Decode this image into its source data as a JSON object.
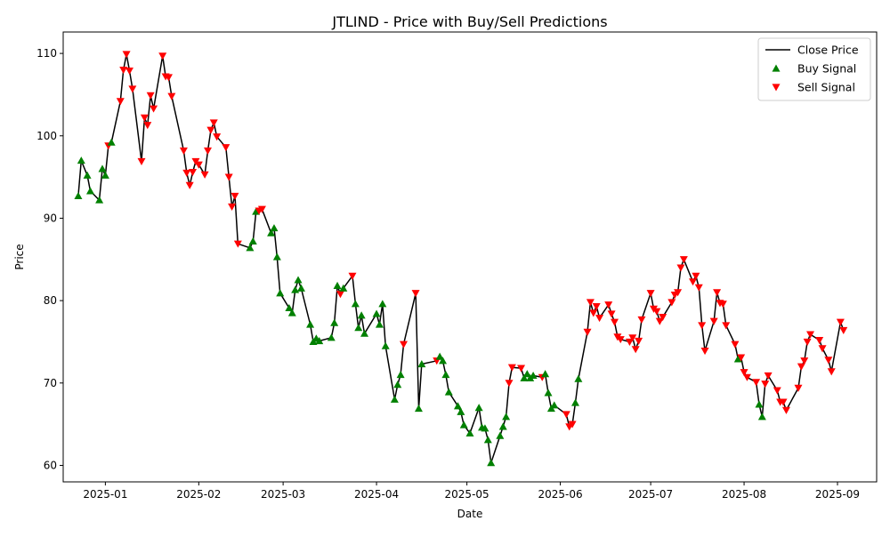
{
  "chart_data": {
    "type": "line",
    "title": "JTLIND - Price with Buy/Sell Predictions",
    "xlabel": "Date",
    "ylabel": "Price",
    "x_ticks": [
      "2025-01",
      "2025-02",
      "2025-03",
      "2025-04",
      "2025-05",
      "2025-06",
      "2025-07",
      "2025-08",
      "2025-09"
    ],
    "y_ticks": [
      60,
      70,
      80,
      90,
      100,
      110
    ],
    "xlim": [
      "2024-12-18",
      "2025-09-14"
    ],
    "ylim": [
      58.0,
      112.6
    ],
    "grid": false,
    "legend_position": "top-right",
    "legend": [
      {
        "label": "Close Price",
        "color": "#000000",
        "marker": "line"
      },
      {
        "label": "Buy Signal",
        "color": "#008000",
        "marker": "triangle-up"
      },
      {
        "label": "Sell Signal",
        "color": "#ff0000",
        "marker": "triangle-down"
      }
    ],
    "points": [
      [
        "2024-12-23",
        92.7,
        "buy"
      ],
      [
        "2024-12-24",
        97.0,
        "buy"
      ],
      [
        "2024-12-26",
        95.2,
        "buy"
      ],
      [
        "2024-12-27",
        93.3,
        "buy"
      ],
      [
        "2024-12-30",
        92.2,
        "buy"
      ],
      [
        "2024-12-31",
        96.0,
        "buy"
      ],
      [
        "2025-01-01",
        95.2,
        "buy"
      ],
      [
        "2025-01-02",
        98.8,
        "sell"
      ],
      [
        "2025-01-03",
        99.2,
        "buy"
      ],
      [
        "2025-01-06",
        104.2,
        "sell"
      ],
      [
        "2025-01-07",
        108.0,
        "sell"
      ],
      [
        "2025-01-08",
        109.9,
        "sell"
      ],
      [
        "2025-01-09",
        107.9,
        "sell"
      ],
      [
        "2025-01-10",
        105.7,
        "sell"
      ],
      [
        "2025-01-13",
        96.9,
        "sell"
      ],
      [
        "2025-01-14",
        102.2,
        "sell"
      ],
      [
        "2025-01-15",
        101.3,
        "sell"
      ],
      [
        "2025-01-16",
        104.9,
        "sell"
      ],
      [
        "2025-01-17",
        103.3,
        "sell"
      ],
      [
        "2025-01-20",
        109.7,
        "sell"
      ],
      [
        "2025-01-21",
        107.2,
        "sell"
      ],
      [
        "2025-01-22",
        107.1,
        "sell"
      ],
      [
        "2025-01-23",
        104.8,
        "sell"
      ],
      [
        "2025-01-27",
        98.2,
        "sell"
      ],
      [
        "2025-01-28",
        95.5,
        "sell"
      ],
      [
        "2025-01-29",
        94.0,
        "sell"
      ],
      [
        "2025-01-30",
        95.6,
        "sell"
      ],
      [
        "2025-01-31",
        96.9,
        "sell"
      ],
      [
        "2025-02-01",
        96.5,
        "sell"
      ],
      [
        "2025-02-03",
        95.3,
        "sell"
      ],
      [
        "2025-02-04",
        98.2,
        "sell"
      ],
      [
        "2025-02-05",
        100.7,
        "sell"
      ],
      [
        "2025-02-06",
        101.6,
        "sell"
      ],
      [
        "2025-02-07",
        99.9,
        "sell"
      ],
      [
        "2025-02-10",
        98.6,
        "sell"
      ],
      [
        "2025-02-11",
        95.0,
        "sell"
      ],
      [
        "2025-02-12",
        91.4,
        "sell"
      ],
      [
        "2025-02-13",
        92.7,
        "sell"
      ],
      [
        "2025-02-14",
        86.9,
        "sell"
      ],
      [
        "2025-02-18",
        86.4,
        "buy"
      ],
      [
        "2025-02-19",
        87.2,
        "buy"
      ],
      [
        "2025-02-20",
        90.8,
        "buy"
      ],
      [
        "2025-02-21",
        90.9,
        "sell"
      ],
      [
        "2025-02-22",
        91.1,
        "sell"
      ],
      [
        "2025-02-25",
        88.2,
        "buy"
      ],
      [
        "2025-02-26",
        88.8,
        "buy"
      ],
      [
        "2025-02-27",
        85.3,
        "buy"
      ],
      [
        "2025-02-28",
        80.9,
        "buy"
      ],
      [
        "2025-03-03",
        79.1,
        "buy"
      ],
      [
        "2025-03-04",
        78.5,
        "buy"
      ],
      [
        "2025-03-05",
        81.3,
        "buy"
      ],
      [
        "2025-03-06",
        82.5,
        "buy"
      ],
      [
        "2025-03-07",
        81.5,
        "buy"
      ],
      [
        "2025-03-10",
        77.1,
        "buy"
      ],
      [
        "2025-03-11",
        75.0,
        "buy"
      ],
      [
        "2025-03-12",
        75.4,
        "buy"
      ],
      [
        "2025-03-13",
        75.1,
        "buy"
      ],
      [
        "2025-03-17",
        75.5,
        "buy"
      ],
      [
        "2025-03-18",
        77.3,
        "buy"
      ],
      [
        "2025-03-19",
        81.8,
        "buy"
      ],
      [
        "2025-03-20",
        80.8,
        "sell"
      ],
      [
        "2025-03-21",
        81.5,
        "buy"
      ],
      [
        "2025-03-24",
        83.0,
        "sell"
      ],
      [
        "2025-03-25",
        79.6,
        "buy"
      ],
      [
        "2025-03-26",
        76.7,
        "buy"
      ],
      [
        "2025-03-27",
        78.2,
        "buy"
      ],
      [
        "2025-03-28",
        76.0,
        "buy"
      ],
      [
        "2025-04-01",
        78.4,
        "buy"
      ],
      [
        "2025-04-02",
        77.1,
        "buy"
      ],
      [
        "2025-04-03",
        79.6,
        "buy"
      ],
      [
        "2025-04-04",
        74.5,
        "buy"
      ],
      [
        "2025-04-07",
        68.0,
        "buy"
      ],
      [
        "2025-04-08",
        69.8,
        "buy"
      ],
      [
        "2025-04-09",
        71.0,
        "buy"
      ],
      [
        "2025-04-10",
        74.7,
        "sell"
      ],
      [
        "2025-04-14",
        80.9,
        "sell"
      ],
      [
        "2025-04-15",
        66.9,
        "buy"
      ],
      [
        "2025-04-16",
        72.3,
        "buy"
      ],
      [
        "2025-04-21",
        72.7,
        "sell"
      ],
      [
        "2025-04-22",
        73.2,
        "buy"
      ],
      [
        "2025-04-23",
        72.7,
        "buy"
      ],
      [
        "2025-04-24",
        71.0,
        "buy"
      ],
      [
        "2025-04-25",
        68.9,
        "buy"
      ],
      [
        "2025-04-28",
        67.2,
        "buy"
      ],
      [
        "2025-04-29",
        66.5,
        "buy"
      ],
      [
        "2025-04-30",
        64.9,
        "buy"
      ],
      [
        "2025-05-02",
        63.9,
        "buy"
      ],
      [
        "2025-05-05",
        67.0,
        "buy"
      ],
      [
        "2025-05-06",
        64.6,
        "buy"
      ],
      [
        "2025-05-07",
        64.5,
        "buy"
      ],
      [
        "2025-05-08",
        63.1,
        "buy"
      ],
      [
        "2025-05-09",
        60.3,
        "buy"
      ],
      [
        "2025-05-12",
        63.6,
        "buy"
      ],
      [
        "2025-05-13",
        64.7,
        "buy"
      ],
      [
        "2025-05-14",
        65.9,
        "buy"
      ],
      [
        "2025-05-15",
        70.0,
        "sell"
      ],
      [
        "2025-05-16",
        71.9,
        "sell"
      ],
      [
        "2025-05-19",
        71.8,
        "sell"
      ],
      [
        "2025-05-20",
        70.6,
        "buy"
      ],
      [
        "2025-05-21",
        71.1,
        "buy"
      ],
      [
        "2025-05-22",
        70.6,
        "buy"
      ],
      [
        "2025-05-23",
        70.9,
        "buy"
      ],
      [
        "2025-05-26",
        70.7,
        "sell"
      ],
      [
        "2025-05-27",
        71.1,
        "buy"
      ],
      [
        "2025-05-28",
        68.8,
        "buy"
      ],
      [
        "2025-05-29",
        66.9,
        "buy"
      ],
      [
        "2025-05-30",
        67.3,
        "buy"
      ],
      [
        "2025-06-03",
        66.2,
        "sell"
      ],
      [
        "2025-06-04",
        64.7,
        "sell"
      ],
      [
        "2025-06-05",
        65.0,
        "sell"
      ],
      [
        "2025-06-06",
        67.6,
        "buy"
      ],
      [
        "2025-06-07",
        70.5,
        "buy"
      ],
      [
        "2025-06-10",
        76.2,
        "sell"
      ],
      [
        "2025-06-11",
        79.8,
        "sell"
      ],
      [
        "2025-06-12",
        78.5,
        "sell"
      ],
      [
        "2025-06-13",
        79.3,
        "sell"
      ],
      [
        "2025-06-14",
        77.9,
        "sell"
      ],
      [
        "2025-06-17",
        79.5,
        "sell"
      ],
      [
        "2025-06-18",
        78.4,
        "sell"
      ],
      [
        "2025-06-19",
        77.4,
        "sell"
      ],
      [
        "2025-06-20",
        75.6,
        "sell"
      ],
      [
        "2025-06-21",
        75.3,
        "sell"
      ],
      [
        "2025-06-24",
        75.0,
        "sell"
      ],
      [
        "2025-06-25",
        75.5,
        "sell"
      ],
      [
        "2025-06-26",
        74.1,
        "sell"
      ],
      [
        "2025-06-27",
        75.1,
        "sell"
      ],
      [
        "2025-06-28",
        77.7,
        "sell"
      ],
      [
        "2025-07-01",
        80.9,
        "sell"
      ],
      [
        "2025-07-02",
        79.0,
        "sell"
      ],
      [
        "2025-07-03",
        78.7,
        "sell"
      ],
      [
        "2025-07-04",
        77.5,
        "sell"
      ],
      [
        "2025-07-05",
        78.0,
        "sell"
      ],
      [
        "2025-07-08",
        79.8,
        "sell"
      ],
      [
        "2025-07-09",
        80.7,
        "sell"
      ],
      [
        "2025-07-10",
        81.0,
        "sell"
      ],
      [
        "2025-07-11",
        84.0,
        "sell"
      ],
      [
        "2025-07-12",
        85.0,
        "sell"
      ],
      [
        "2025-07-15",
        82.3,
        "sell"
      ],
      [
        "2025-07-16",
        83.0,
        "sell"
      ],
      [
        "2025-07-17",
        81.6,
        "sell"
      ],
      [
        "2025-07-18",
        77.0,
        "sell"
      ],
      [
        "2025-07-19",
        73.9,
        "sell"
      ],
      [
        "2025-07-22",
        77.5,
        "sell"
      ],
      [
        "2025-07-23",
        81.0,
        "sell"
      ],
      [
        "2025-07-24",
        79.7,
        "sell"
      ],
      [
        "2025-07-25",
        79.6,
        "sell"
      ],
      [
        "2025-07-26",
        77.0,
        "sell"
      ],
      [
        "2025-07-29",
        74.7,
        "sell"
      ],
      [
        "2025-07-30",
        72.9,
        "buy"
      ],
      [
        "2025-07-31",
        73.1,
        "sell"
      ],
      [
        "2025-08-01",
        71.3,
        "sell"
      ],
      [
        "2025-08-02",
        70.7,
        "sell"
      ],
      [
        "2025-08-05",
        70.1,
        "sell"
      ],
      [
        "2025-08-06",
        67.4,
        "buy"
      ],
      [
        "2025-08-07",
        65.9,
        "buy"
      ],
      [
        "2025-08-08",
        69.9,
        "sell"
      ],
      [
        "2025-08-09",
        70.9,
        "sell"
      ],
      [
        "2025-08-12",
        69.1,
        "sell"
      ],
      [
        "2025-08-13",
        67.7,
        "sell"
      ],
      [
        "2025-08-14",
        67.7,
        "sell"
      ],
      [
        "2025-08-15",
        66.7,
        "sell"
      ],
      [
        "2025-08-19",
        69.4,
        "sell"
      ],
      [
        "2025-08-20",
        72.0,
        "sell"
      ],
      [
        "2025-08-21",
        72.7,
        "sell"
      ],
      [
        "2025-08-22",
        75.0,
        "sell"
      ],
      [
        "2025-08-23",
        75.9,
        "sell"
      ],
      [
        "2025-08-26",
        75.2,
        "sell"
      ],
      [
        "2025-08-27",
        74.2,
        "sell"
      ],
      [
        "2025-08-29",
        72.8,
        "sell"
      ],
      [
        "2025-08-30",
        71.4,
        "sell"
      ],
      [
        "2025-09-02",
        77.4,
        "sell"
      ],
      [
        "2025-09-03",
        76.4,
        "sell"
      ]
    ]
  }
}
